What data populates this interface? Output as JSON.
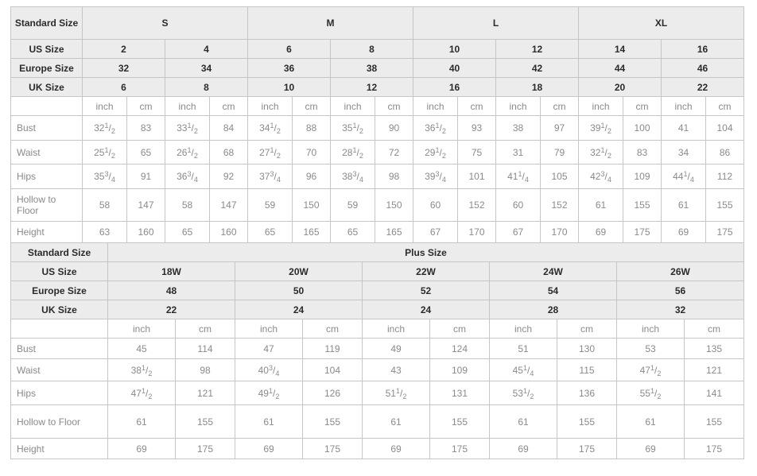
{
  "colors": {
    "header_bg": "#ececec",
    "header_text": "#2b2b2b",
    "body_text": "#8a8a8a",
    "grid_border": "#c6c6c6"
  },
  "standard_table": {
    "label_header": "Standard Size",
    "size_groups": [
      {
        "label": "S"
      },
      {
        "label": "M"
      },
      {
        "label": "L"
      },
      {
        "label": "XL"
      }
    ],
    "size_rows": [
      {
        "label": "US Size",
        "values": [
          "2",
          "4",
          "6",
          "8",
          "10",
          "12",
          "14",
          "16"
        ]
      },
      {
        "label": "Europe Size",
        "values": [
          "32",
          "34",
          "36",
          "38",
          "40",
          "42",
          "44",
          "46"
        ]
      },
      {
        "label": "UK Size",
        "values": [
          "6",
          "8",
          "10",
          "12",
          "16",
          "18",
          "20",
          "22"
        ]
      }
    ],
    "unit_labels": [
      "inch",
      "cm"
    ],
    "measure_rows": [
      {
        "label": "Bust",
        "values": [
          "32 1/2",
          "83",
          "33 1/2",
          "84",
          "34 1/2",
          "88",
          "35 1/2",
          "90",
          "36 1/2",
          "93",
          "38",
          "97",
          "39 1/2",
          "100",
          "41",
          "104"
        ]
      },
      {
        "label": "Waist",
        "values": [
          "25 1/2",
          "65",
          "26 1/2",
          "68",
          "27 1/2",
          "70",
          "28 1/2",
          "72",
          "29 1/2",
          "75",
          "31",
          "79",
          "32 1/2",
          "83",
          "34",
          "86"
        ]
      },
      {
        "label": "Hips",
        "values": [
          "35 3/4",
          "91",
          "36 3/4",
          "92",
          "37 3/4",
          "96",
          "38 3/4",
          "98",
          "39 3/4",
          "101",
          "41 1/4",
          "105",
          "42 3/4",
          "109",
          "44 1/4",
          "112"
        ]
      },
      {
        "label": "Hollow to Floor",
        "values": [
          "58",
          "147",
          "58",
          "147",
          "59",
          "150",
          "59",
          "150",
          "60",
          "152",
          "60",
          "152",
          "61",
          "155",
          "61",
          "155"
        ]
      },
      {
        "label": "Height",
        "values": [
          "63",
          "160",
          "65",
          "160",
          "65",
          "165",
          "65",
          "165",
          "67",
          "170",
          "67",
          "170",
          "69",
          "175",
          "69",
          "175"
        ]
      }
    ]
  },
  "plus_table": {
    "label_header": "Standard Size",
    "group_header": "Plus Size",
    "size_rows": [
      {
        "label": "US Size",
        "values": [
          "18W",
          "20W",
          "22W",
          "24W",
          "26W"
        ]
      },
      {
        "label": "Europe Size",
        "values": [
          "48",
          "50",
          "52",
          "54",
          "56"
        ]
      },
      {
        "label": "UK Size",
        "values": [
          "22",
          "24",
          "24",
          "28",
          "32"
        ]
      }
    ],
    "unit_labels": [
      "inch",
      "cm"
    ],
    "measure_rows": [
      {
        "label": "Bust",
        "values": [
          "45",
          "114",
          "47",
          "119",
          "49",
          "124",
          "51",
          "130",
          "53",
          "135"
        ]
      },
      {
        "label": "Waist",
        "values": [
          "38 1/2",
          "98",
          "40 3/4",
          "104",
          "43",
          "109",
          "45 1/4",
          "115",
          "47 1/2",
          "121"
        ]
      },
      {
        "label": "Hips",
        "values": [
          "47 1/2",
          "121",
          "49 1/2",
          "126",
          "51 1/2",
          "131",
          "53 1/2",
          "136",
          "55 1/2",
          "141"
        ]
      },
      {
        "label": "Hollow to Floor",
        "values": [
          "61",
          "155",
          "61",
          "155",
          "61",
          "155",
          "61",
          "155",
          "61",
          "155"
        ]
      },
      {
        "label": "Height",
        "values": [
          "69",
          "175",
          "69",
          "175",
          "69",
          "175",
          "69",
          "175",
          "69",
          "175"
        ]
      }
    ]
  }
}
